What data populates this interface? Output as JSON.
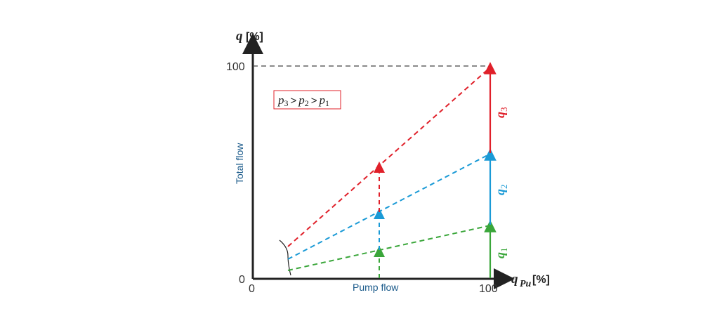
{
  "diagram": {
    "y_axis": {
      "symbol": "q",
      "unit": "[%]",
      "caption": "Total flow",
      "tick_zero": "0",
      "tick_max": "100"
    },
    "x_axis": {
      "symbol": "q",
      "subscript": "Pu",
      "unit": "[%]",
      "caption": "Pump flow",
      "tick_zero": "0",
      "tick_max": "100"
    },
    "legend": {
      "p3": "p",
      "p3_sub": "3",
      "p2": "p",
      "p2_sub": "2",
      "p1": "p",
      "p1_sub": "1",
      "gt": ">"
    },
    "labels": {
      "q3": "q",
      "q3_sub": "3",
      "q2": "q",
      "q2_sub": "2",
      "q1": "q",
      "q1_sub": "1"
    },
    "colors": {
      "red": "#e0202a",
      "blue": "#1a9ad6",
      "green": "#3aa63a",
      "axis": "#222222",
      "legend_border": "#e0202a"
    }
  }
}
